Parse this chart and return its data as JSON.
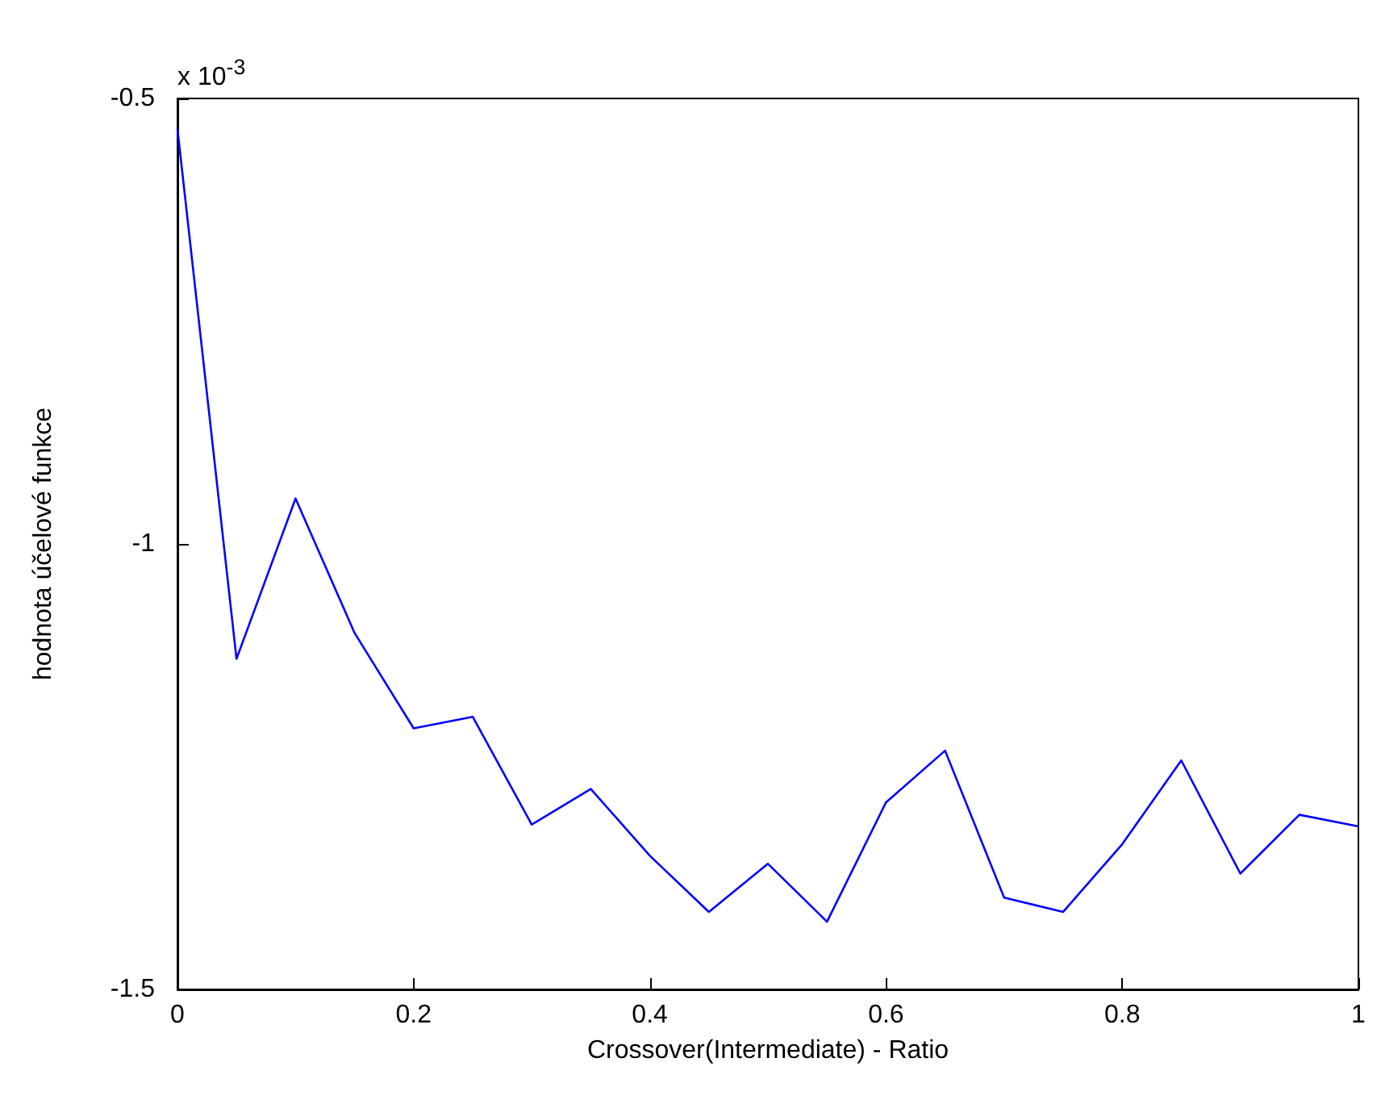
{
  "chart_data": {
    "type": "line",
    "xlabel": "Crossover(Intermediate) - Ratio",
    "ylabel": "hodnota účelové funkce",
    "annotations": [
      "x 10$^{-3}$"
    ],
    "x": [
      0,
      0.05,
      0.1,
      0.15,
      0.2,
      0.25,
      0.3,
      0.35,
      0.4,
      0.45,
      0.5,
      0.55,
      0.6,
      0.65,
      0.7,
      0.75,
      0.8,
      0.85,
      0.9,
      0.95,
      1
    ],
    "series": [
      {
        "color": "#0000ff",
        "values": [
          -0.534,
          -1.129,
          -0.949,
          -1.1,
          -1.207,
          -1.194,
          -1.315,
          -1.275,
          -1.35,
          -1.413,
          -1.359,
          -1.424,
          -1.29,
          -1.232,
          -1.397,
          -1.413,
          -1.337,
          -1.243,
          -1.37,
          -1.304,
          -1.317
        ]
      }
    ],
    "xlim": [
      0,
      1
    ],
    "xticks": [
      0,
      0.2,
      0.4,
      0.6,
      0.8,
      1
    ],
    "ylim": [
      -1.5,
      -0.5
    ],
    "yticks": [
      -1.5,
      -1,
      -0.5
    ],
    "grid": false,
    "marker": "none",
    "line_style": "solid"
  }
}
